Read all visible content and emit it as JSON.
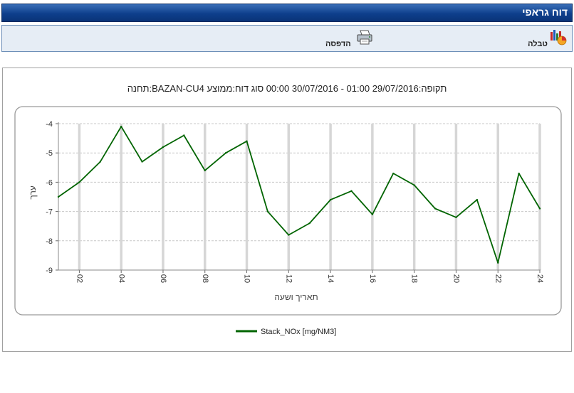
{
  "window": {
    "title": "דוח גראפי"
  },
  "toolbar": {
    "table_label": "טבלה",
    "print_label": "הדפסה"
  },
  "chart_data": {
    "type": "line",
    "title": "תקופה:29/07/2016 01:00 - 30/07/2016 00:00 סוג  דוח:ממוצע BAZAN-CU4:תחנה",
    "xlabel": "תאריך ושעה",
    "ylabel": "ערך",
    "x": [
      1,
      2,
      3,
      4,
      5,
      6,
      7,
      8,
      9,
      10,
      11,
      12,
      13,
      14,
      15,
      16,
      17,
      18,
      19,
      20,
      21,
      22,
      23,
      24
    ],
    "x_tick_labels": [
      "02",
      "04",
      "06",
      "08",
      "10",
      "12",
      "14",
      "16",
      "18",
      "20",
      "22",
      "24"
    ],
    "xlim": [
      1,
      24
    ],
    "ylim": [
      -9,
      -4
    ],
    "y_ticks": [
      -4,
      -5,
      -6,
      -7,
      -8,
      -9
    ],
    "grid": true,
    "series": [
      {
        "name": "Stack_NOx [mg/NM3]",
        "color": "#006400",
        "values": [
          -6.5,
          -6.0,
          -5.3,
          -4.1,
          -5.3,
          -4.8,
          -4.4,
          -5.6,
          -5.0,
          -4.6,
          -7.0,
          -7.8,
          -7.4,
          -6.6,
          -6.3,
          -7.1,
          -5.7,
          -6.1,
          -6.9,
          -7.2,
          -6.6,
          -8.75,
          -5.7,
          -6.9
        ]
      }
    ],
    "legend": "bottom-center"
  }
}
